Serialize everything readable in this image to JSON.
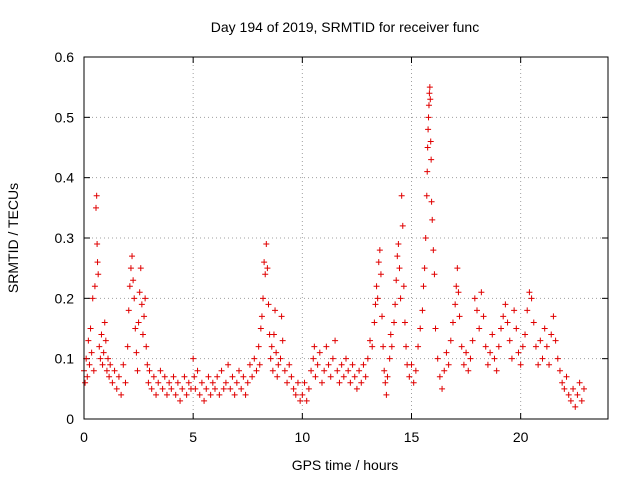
{
  "chart_data": {
    "type": "scatter",
    "title": "Day 194 of 2019, SRMTID for receiver func",
    "xlabel": "GPS time / hours",
    "ylabel": "SRMTID / TECUs",
    "xlim": [
      0,
      24
    ],
    "ylim": [
      0,
      0.6
    ],
    "xticks": [
      0,
      5,
      10,
      15,
      20
    ],
    "xtick_labels": [
      "0",
      "5",
      "10",
      "15",
      "20"
    ],
    "yticks": [
      0,
      0.1,
      0.2,
      0.3,
      0.4,
      0.5,
      0.6
    ],
    "ytick_labels": [
      "0",
      "0.1",
      "0.2",
      "0.3",
      "0.4",
      "0.5",
      "0.6"
    ],
    "grid": true,
    "marker": "+",
    "color": "#e00000",
    "series": [
      {
        "name": "SRMTID",
        "points": [
          [
            0.0,
            0.08
          ],
          [
            0.05,
            0.06
          ],
          [
            0.1,
            0.1
          ],
          [
            0.15,
            0.07
          ],
          [
            0.2,
            0.13
          ],
          [
            0.25,
            0.09
          ],
          [
            0.3,
            0.15
          ],
          [
            0.35,
            0.11
          ],
          [
            0.4,
            0.2
          ],
          [
            0.45,
            0.08
          ],
          [
            0.5,
            0.22
          ],
          [
            0.55,
            0.35
          ],
          [
            0.58,
            0.37
          ],
          [
            0.6,
            0.29
          ],
          [
            0.62,
            0.26
          ],
          [
            0.65,
            0.24
          ],
          [
            0.7,
            0.12
          ],
          [
            0.75,
            0.1
          ],
          [
            0.8,
            0.14
          ],
          [
            0.85,
            0.09
          ],
          [
            0.9,
            0.11
          ],
          [
            0.95,
            0.16
          ],
          [
            1.0,
            0.13
          ],
          [
            1.05,
            0.08
          ],
          [
            1.1,
            0.1
          ],
          [
            1.15,
            0.07
          ],
          [
            1.2,
            0.09
          ],
          [
            1.3,
            0.06
          ],
          [
            1.4,
            0.08
          ],
          [
            1.5,
            0.05
          ],
          [
            1.6,
            0.07
          ],
          [
            1.7,
            0.04
          ],
          [
            1.8,
            0.09
          ],
          [
            1.9,
            0.06
          ],
          [
            2.0,
            0.12
          ],
          [
            2.05,
            0.18
          ],
          [
            2.1,
            0.22
          ],
          [
            2.15,
            0.25
          ],
          [
            2.2,
            0.27
          ],
          [
            2.25,
            0.23
          ],
          [
            2.3,
            0.2
          ],
          [
            2.35,
            0.15
          ],
          [
            2.4,
            0.11
          ],
          [
            2.45,
            0.08
          ],
          [
            2.5,
            0.16
          ],
          [
            2.55,
            0.21
          ],
          [
            2.6,
            0.25
          ],
          [
            2.65,
            0.19
          ],
          [
            2.7,
            0.14
          ],
          [
            2.75,
            0.17
          ],
          [
            2.8,
            0.2
          ],
          [
            2.85,
            0.12
          ],
          [
            2.9,
            0.09
          ],
          [
            2.95,
            0.06
          ],
          [
            3.0,
            0.08
          ],
          [
            3.1,
            0.05
          ],
          [
            3.2,
            0.07
          ],
          [
            3.3,
            0.04
          ],
          [
            3.4,
            0.06
          ],
          [
            3.5,
            0.08
          ],
          [
            3.6,
            0.05
          ],
          [
            3.7,
            0.07
          ],
          [
            3.8,
            0.04
          ],
          [
            3.9,
            0.06
          ],
          [
            4.0,
            0.05
          ],
          [
            4.1,
            0.07
          ],
          [
            4.2,
            0.04
          ],
          [
            4.3,
            0.06
          ],
          [
            4.4,
            0.03
          ],
          [
            4.5,
            0.05
          ],
          [
            4.6,
            0.07
          ],
          [
            4.7,
            0.04
          ],
          [
            4.8,
            0.06
          ],
          [
            4.9,
            0.05
          ],
          [
            5.0,
            0.1
          ],
          [
            5.05,
            0.07
          ],
          [
            5.1,
            0.05
          ],
          [
            5.2,
            0.08
          ],
          [
            5.3,
            0.04
          ],
          [
            5.4,
            0.06
          ],
          [
            5.5,
            0.03
          ],
          [
            5.6,
            0.05
          ],
          [
            5.7,
            0.07
          ],
          [
            5.8,
            0.04
          ],
          [
            5.9,
            0.06
          ],
          [
            6.0,
            0.05
          ],
          [
            6.1,
            0.07
          ],
          [
            6.2,
            0.04
          ],
          [
            6.3,
            0.08
          ],
          [
            6.4,
            0.05
          ],
          [
            6.5,
            0.06
          ],
          [
            6.6,
            0.09
          ],
          [
            6.7,
            0.05
          ],
          [
            6.8,
            0.07
          ],
          [
            6.9,
            0.04
          ],
          [
            7.0,
            0.06
          ],
          [
            7.1,
            0.08
          ],
          [
            7.2,
            0.05
          ],
          [
            7.3,
            0.07
          ],
          [
            7.4,
            0.04
          ],
          [
            7.5,
            0.06
          ],
          [
            7.6,
            0.09
          ],
          [
            7.7,
            0.07
          ],
          [
            7.8,
            0.1
          ],
          [
            7.9,
            0.08
          ],
          [
            8.0,
            0.12
          ],
          [
            8.05,
            0.09
          ],
          [
            8.1,
            0.15
          ],
          [
            8.15,
            0.17
          ],
          [
            8.2,
            0.2
          ],
          [
            8.25,
            0.26
          ],
          [
            8.3,
            0.24
          ],
          [
            8.35,
            0.29
          ],
          [
            8.4,
            0.25
          ],
          [
            8.45,
            0.19
          ],
          [
            8.5,
            0.14
          ],
          [
            8.55,
            0.1
          ],
          [
            8.6,
            0.12
          ],
          [
            8.65,
            0.08
          ],
          [
            8.7,
            0.14
          ],
          [
            8.75,
            0.18
          ],
          [
            8.8,
            0.11
          ],
          [
            8.85,
            0.07
          ],
          [
            8.9,
            0.09
          ],
          [
            9.0,
            0.1
          ],
          [
            9.05,
            0.17
          ],
          [
            9.1,
            0.13
          ],
          [
            9.2,
            0.08
          ],
          [
            9.3,
            0.06
          ],
          [
            9.4,
            0.09
          ],
          [
            9.5,
            0.07
          ],
          [
            9.6,
            0.05
          ],
          [
            9.7,
            0.04
          ],
          [
            9.8,
            0.06
          ],
          [
            9.9,
            0.03
          ],
          [
            10.0,
            0.04
          ],
          [
            10.1,
            0.06
          ],
          [
            10.2,
            0.03
          ],
          [
            10.3,
            0.05
          ],
          [
            10.4,
            0.08
          ],
          [
            10.5,
            0.1
          ],
          [
            10.55,
            0.12
          ],
          [
            10.6,
            0.07
          ],
          [
            10.7,
            0.09
          ],
          [
            10.8,
            0.11
          ],
          [
            10.9,
            0.06
          ],
          [
            11.0,
            0.08
          ],
          [
            11.1,
            0.12
          ],
          [
            11.2,
            0.09
          ],
          [
            11.3,
            0.07
          ],
          [
            11.4,
            0.1
          ],
          [
            11.5,
            0.13
          ],
          [
            11.6,
            0.08
          ],
          [
            11.7,
            0.06
          ],
          [
            11.8,
            0.09
          ],
          [
            11.9,
            0.07
          ],
          [
            12.0,
            0.1
          ],
          [
            12.1,
            0.08
          ],
          [
            12.2,
            0.06
          ],
          [
            12.3,
            0.09
          ],
          [
            12.4,
            0.07
          ],
          [
            12.5,
            0.05
          ],
          [
            12.6,
            0.08
          ],
          [
            12.7,
            0.06
          ],
          [
            12.8,
            0.09
          ],
          [
            12.9,
            0.07
          ],
          [
            13.0,
            0.1
          ],
          [
            13.1,
            0.13
          ],
          [
            13.2,
            0.12
          ],
          [
            13.3,
            0.16
          ],
          [
            13.35,
            0.19
          ],
          [
            13.4,
            0.22
          ],
          [
            13.45,
            0.2
          ],
          [
            13.5,
            0.26
          ],
          [
            13.55,
            0.28
          ],
          [
            13.6,
            0.24
          ],
          [
            13.65,
            0.17
          ],
          [
            13.7,
            0.12
          ],
          [
            13.75,
            0.08
          ],
          [
            13.8,
            0.06
          ],
          [
            13.85,
            0.04
          ],
          [
            13.9,
            0.07
          ],
          [
            14.0,
            0.1
          ],
          [
            14.05,
            0.14
          ],
          [
            14.1,
            0.12
          ],
          [
            14.2,
            0.16
          ],
          [
            14.25,
            0.19
          ],
          [
            14.3,
            0.23
          ],
          [
            14.35,
            0.27
          ],
          [
            14.4,
            0.29
          ],
          [
            14.45,
            0.25
          ],
          [
            14.5,
            0.2
          ],
          [
            14.55,
            0.37
          ],
          [
            14.6,
            0.32
          ],
          [
            14.65,
            0.22
          ],
          [
            14.7,
            0.16
          ],
          [
            14.75,
            0.12
          ],
          [
            14.8,
            0.09
          ],
          [
            14.9,
            0.07
          ],
          [
            15.0,
            0.09
          ],
          [
            15.1,
            0.06
          ],
          [
            15.2,
            0.08
          ],
          [
            15.3,
            0.12
          ],
          [
            15.4,
            0.15
          ],
          [
            15.5,
            0.18
          ],
          [
            15.55,
            0.22
          ],
          [
            15.6,
            0.25
          ],
          [
            15.65,
            0.3
          ],
          [
            15.7,
            0.37
          ],
          [
            15.72,
            0.41
          ],
          [
            15.74,
            0.45
          ],
          [
            15.76,
            0.48
          ],
          [
            15.78,
            0.5
          ],
          [
            15.8,
            0.52
          ],
          [
            15.82,
            0.54
          ],
          [
            15.84,
            0.55
          ],
          [
            15.86,
            0.53
          ],
          [
            15.88,
            0.46
          ],
          [
            15.9,
            0.43
          ],
          [
            15.92,
            0.36
          ],
          [
            15.95,
            0.33
          ],
          [
            16.0,
            0.28
          ],
          [
            16.05,
            0.24
          ],
          [
            16.1,
            0.15
          ],
          [
            16.2,
            0.1
          ],
          [
            16.3,
            0.07
          ],
          [
            16.4,
            0.05
          ],
          [
            16.5,
            0.08
          ],
          [
            16.6,
            0.11
          ],
          [
            16.7,
            0.09
          ],
          [
            16.8,
            0.13
          ],
          [
            16.9,
            0.16
          ],
          [
            17.0,
            0.19
          ],
          [
            17.05,
            0.22
          ],
          [
            17.1,
            0.25
          ],
          [
            17.15,
            0.21
          ],
          [
            17.2,
            0.17
          ],
          [
            17.3,
            0.12
          ],
          [
            17.4,
            0.09
          ],
          [
            17.5,
            0.11
          ],
          [
            17.6,
            0.08
          ],
          [
            17.7,
            0.1
          ],
          [
            17.8,
            0.13
          ],
          [
            17.9,
            0.2
          ],
          [
            18.0,
            0.18
          ],
          [
            18.1,
            0.15
          ],
          [
            18.2,
            0.21
          ],
          [
            18.3,
            0.17
          ],
          [
            18.4,
            0.12
          ],
          [
            18.5,
            0.09
          ],
          [
            18.6,
            0.11
          ],
          [
            18.7,
            0.14
          ],
          [
            18.8,
            0.1
          ],
          [
            18.9,
            0.08
          ],
          [
            19.0,
            0.12
          ],
          [
            19.1,
            0.15
          ],
          [
            19.2,
            0.17
          ],
          [
            19.3,
            0.19
          ],
          [
            19.4,
            0.16
          ],
          [
            19.5,
            0.13
          ],
          [
            19.6,
            0.1
          ],
          [
            19.7,
            0.18
          ],
          [
            19.8,
            0.15
          ],
          [
            19.9,
            0.11
          ],
          [
            20.0,
            0.09
          ],
          [
            20.1,
            0.12
          ],
          [
            20.2,
            0.14
          ],
          [
            20.3,
            0.18
          ],
          [
            20.4,
            0.21
          ],
          [
            20.5,
            0.2
          ],
          [
            20.6,
            0.16
          ],
          [
            20.7,
            0.12
          ],
          [
            20.8,
            0.09
          ],
          [
            20.9,
            0.13
          ],
          [
            21.0,
            0.1
          ],
          [
            21.1,
            0.15
          ],
          [
            21.2,
            0.12
          ],
          [
            21.3,
            0.09
          ],
          [
            21.4,
            0.14
          ],
          [
            21.5,
            0.17
          ],
          [
            21.6,
            0.13
          ],
          [
            21.7,
            0.1
          ],
          [
            21.8,
            0.08
          ],
          [
            21.9,
            0.06
          ],
          [
            22.0,
            0.05
          ],
          [
            22.1,
            0.07
          ],
          [
            22.2,
            0.04
          ],
          [
            22.3,
            0.03
          ],
          [
            22.4,
            0.05
          ],
          [
            22.5,
            0.02
          ],
          [
            22.6,
            0.04
          ],
          [
            22.7,
            0.06
          ],
          [
            22.8,
            0.03
          ],
          [
            22.9,
            0.05
          ]
        ]
      }
    ]
  }
}
